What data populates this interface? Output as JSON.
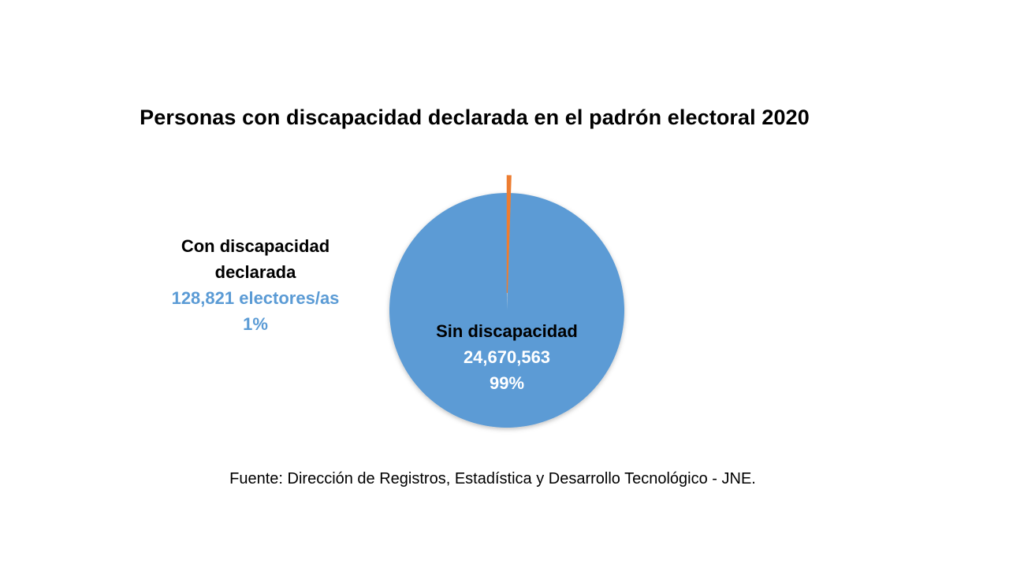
{
  "chart_data": {
    "type": "pie",
    "title": "Personas con discapacidad declarada en el padrón electoral 2020",
    "slices": [
      {
        "label": "Sin discapacidad",
        "value": 24670563,
        "value_text": "24,670,563",
        "percent_text": "99%",
        "color": "#5b9bd5"
      },
      {
        "label_lines": [
          "Con discapacidad",
          "declarada"
        ],
        "value": 128821,
        "value_text": "128,821 electores/as",
        "percent_text": "1%",
        "color": "#ed7d31"
      }
    ],
    "legend": "none"
  },
  "source": "Fuente: Dirección de Registros, Estadística y Desarrollo Tecnológico - JNE."
}
